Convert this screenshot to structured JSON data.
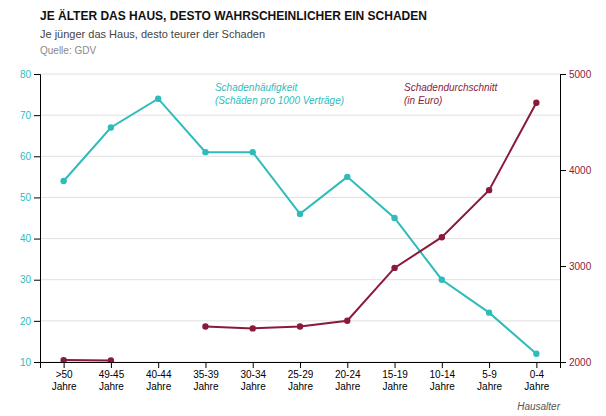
{
  "chart_data": {
    "type": "line",
    "title": "JE ÄLTER DAS HAUS, DESTO WAHRSCHEINLICHER EIN SCHADEN",
    "subtitle": "Je jünger das Haus, desto teurer der Schaden",
    "source": "Quelle: GDV",
    "x_label": "Hausalter",
    "categories": [
      ">50\nJahre",
      "49-45\nJahre",
      "40-44\nJahre",
      "35-39\nJahre",
      "30-34\nJahre",
      "25-29\nJahre",
      "20-24\nJahre",
      "15-19\nJahre",
      "10-14\nJahre",
      "5-9\nJahre",
      "0-4\nJahre"
    ],
    "series": [
      {
        "values": [
          54,
          67,
          74,
          61,
          61,
          46,
          55,
          45,
          30,
          22,
          12
        ],
        "color": "#30BBBB",
        "marker": "circle",
        "axis": "y"
      },
      {
        "values": [
          2020,
          2016,
          null,
          2370,
          2350,
          2370,
          2430,
          2980,
          3300,
          3790,
          4700
        ],
        "color": "#8B1A3A",
        "marker": "circle",
        "axis": "y2"
      }
    ],
    "annotations": [
      "Schadenhäufigkeit\n(Schäden pro 1000 Verträge)",
      "Schadendurchschnitt\n(in Euro)"
    ],
    "ylim": [
      10,
      80
    ],
    "yticks": [
      10,
      20,
      30,
      40,
      50,
      60,
      70,
      80
    ],
    "y2lim": [
      2000,
      5000
    ],
    "y2ticks": [
      2000,
      3000,
      4000,
      5000
    ],
    "grid": true
  }
}
